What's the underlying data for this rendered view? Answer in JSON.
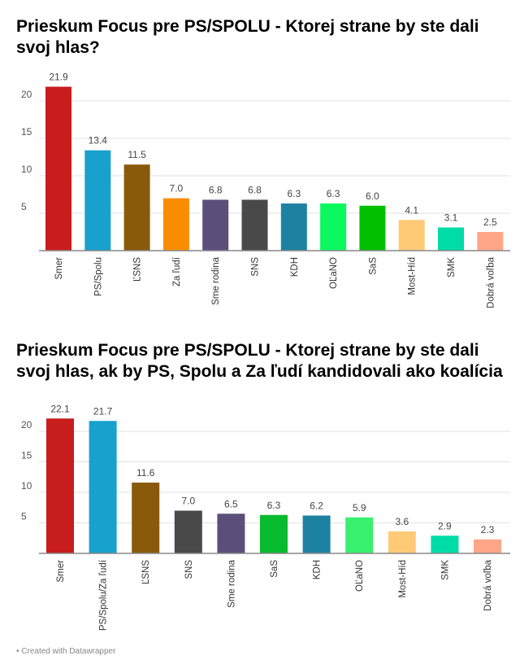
{
  "chart_data": [
    {
      "type": "bar",
      "title": "Prieskum Focus pre PS/SPOLU - Ktorej strane by ste dali svoj hlas?",
      "categories": [
        "Smer",
        "PS/Spolu",
        "ĽSNS",
        "Za ľudí",
        "Sme rodina",
        "SNS",
        "KDH",
        "OĽaNO",
        "SaS",
        "Most-Híd",
        "SMK",
        "Dobrá voľba"
      ],
      "values": [
        21.9,
        13.4,
        11.5,
        7.0,
        6.8,
        6.8,
        6.3,
        6.3,
        6.0,
        4.1,
        3.1,
        2.5
      ],
      "colors": [
        "#c71e1d",
        "#18a1cd",
        "#8a5a0b",
        "#fa8c00",
        "#5b4f7a",
        "#494949",
        "#1d81a2",
        "#09f95f",
        "#00c000",
        "#ffca76",
        "#00dca6",
        "#ffa688"
      ],
      "yticks": [
        5,
        10,
        15,
        20
      ],
      "ylim": [
        0,
        23
      ],
      "grid": true
    },
    {
      "type": "bar",
      "title": "Prieskum Focus pre PS/SPOLU - Ktorej strane by ste dali svoj hlas, ak by PS, Spolu a Za ľudí kandidovali ako koalícia",
      "categories": [
        "Smer",
        "PS/Spolu/Za ľudí",
        "ĽSNS",
        "SNS",
        "Sme rodina",
        "SaS",
        "KDH",
        "OĽaNO",
        "Most-Híd",
        "SMK",
        "Dobrá voľba"
      ],
      "values": [
        22.1,
        21.7,
        11.6,
        7.0,
        6.5,
        6.3,
        6.2,
        5.9,
        3.6,
        2.9,
        2.3
      ],
      "colors": [
        "#c71e1d",
        "#18a1cd",
        "#8a5a0b",
        "#494949",
        "#5b4f7a",
        "#09bb2f",
        "#1d81a2",
        "#39f06e",
        "#ffca76",
        "#00dca6",
        "#ffa688"
      ],
      "yticks": [
        5,
        10,
        15,
        20
      ],
      "ylim": [
        0,
        23
      ],
      "grid": true
    }
  ],
  "footer": "• Created with Datawrapper"
}
